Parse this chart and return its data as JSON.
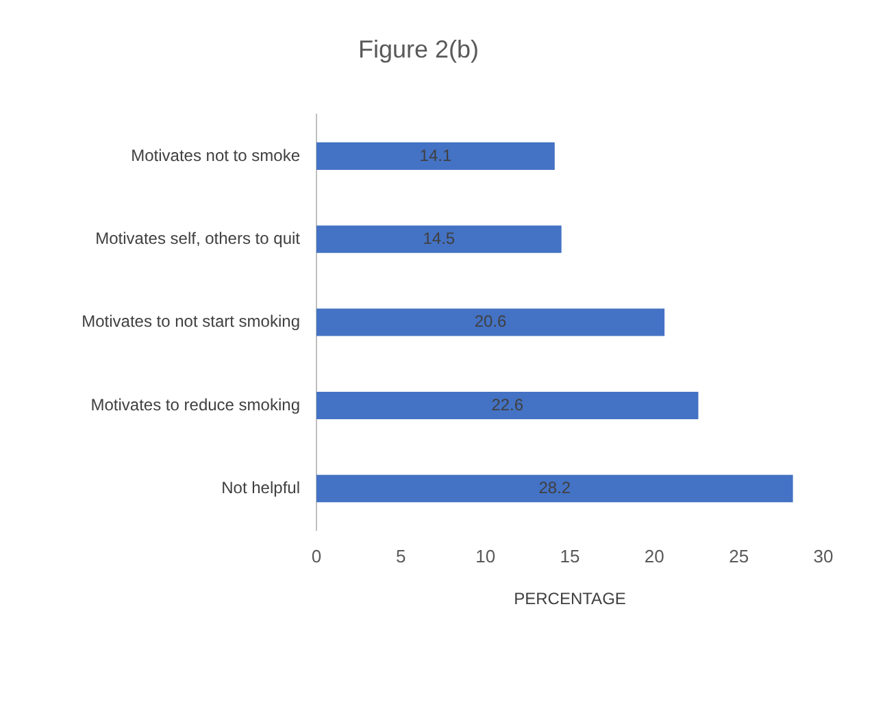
{
  "chart_data": {
    "type": "bar",
    "orientation": "horizontal",
    "title": "Figure 2(b)",
    "xlabel": "PERCENTAGE",
    "categories": [
      "Motivates not to smoke",
      "Motivates self, others to quit",
      "Motivates to not start smoking",
      "Motivates to reduce smoking",
      "Not helpful"
    ],
    "values": [
      14.1,
      14.5,
      20.6,
      22.6,
      28.2
    ],
    "color": "#4472c4",
    "xlim": [
      0,
      30
    ],
    "xticks": [
      0,
      5,
      10,
      15,
      20,
      25,
      30
    ],
    "grid": false,
    "legend": false,
    "data_labels": true
  }
}
